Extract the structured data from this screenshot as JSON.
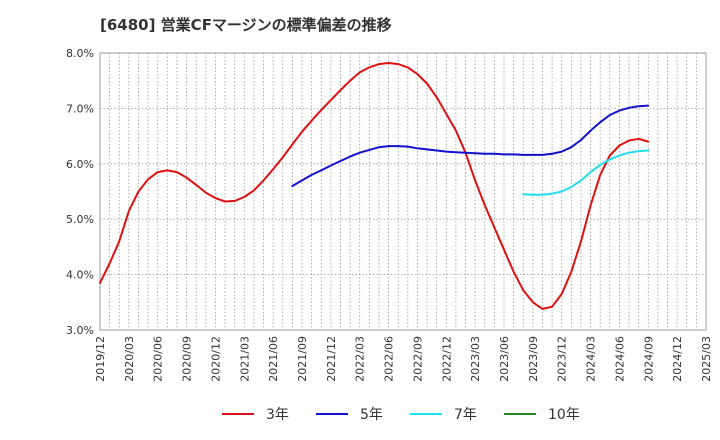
{
  "chart_data": {
    "type": "line",
    "title": "[6480]  営業CFマージンの標準偏差の推移",
    "xlabel": "",
    "ylabel": "",
    "ylim": [
      3.0,
      8.0
    ],
    "y_ticks": [
      "3.0%",
      "4.0%",
      "5.0%",
      "6.0%",
      "7.0%",
      "8.0%"
    ],
    "y_tick_values": [
      3,
      4,
      5,
      6,
      7,
      8
    ],
    "x_ticks": [
      "2019/12",
      "2020/03",
      "2020/06",
      "2020/09",
      "2020/12",
      "2021/03",
      "2021/06",
      "2021/09",
      "2021/12",
      "2022/03",
      "2022/06",
      "2022/09",
      "2022/12",
      "2023/03",
      "2023/06",
      "2023/09",
      "2023/12",
      "2024/03",
      "2024/06",
      "2024/09",
      "2024/12",
      "2025/03"
    ],
    "grid": true,
    "legend_position": "bottom",
    "series": [
      {
        "name": "3年",
        "color": "#dd1111",
        "points": [
          [
            "2019/12",
            3.85
          ],
          [
            "2020/01",
            4.2
          ],
          [
            "2020/02",
            4.6
          ],
          [
            "2020/03",
            5.15
          ],
          [
            "2020/04",
            5.5
          ],
          [
            "2020/05",
            5.72
          ],
          [
            "2020/06",
            5.85
          ],
          [
            "2020/07",
            5.88
          ],
          [
            "2020/08",
            5.85
          ],
          [
            "2020/09",
            5.75
          ],
          [
            "2020/10",
            5.62
          ],
          [
            "2020/11",
            5.48
          ],
          [
            "2020/12",
            5.38
          ],
          [
            "2021/01",
            5.32
          ],
          [
            "2021/02",
            5.33
          ],
          [
            "2021/03",
            5.4
          ],
          [
            "2021/04",
            5.52
          ],
          [
            "2021/05",
            5.7
          ],
          [
            "2021/06",
            5.9
          ],
          [
            "2021/07",
            6.12
          ],
          [
            "2021/08",
            6.35
          ],
          [
            "2021/09",
            6.58
          ],
          [
            "2021/10",
            6.78
          ],
          [
            "2021/11",
            6.97
          ],
          [
            "2021/12",
            7.15
          ],
          [
            "2022/01",
            7.33
          ],
          [
            "2022/02",
            7.5
          ],
          [
            "2022/03",
            7.65
          ],
          [
            "2022/04",
            7.74
          ],
          [
            "2022/05",
            7.8
          ],
          [
            "2022/06",
            7.82
          ],
          [
            "2022/07",
            7.8
          ],
          [
            "2022/08",
            7.74
          ],
          [
            "2022/09",
            7.62
          ],
          [
            "2022/10",
            7.45
          ],
          [
            "2022/11",
            7.2
          ],
          [
            "2022/12",
            6.9
          ],
          [
            "2023/01",
            6.6
          ],
          [
            "2023/02",
            6.2
          ],
          [
            "2023/03",
            5.7
          ],
          [
            "2023/04",
            5.25
          ],
          [
            "2023/05",
            4.85
          ],
          [
            "2023/06",
            4.45
          ],
          [
            "2023/07",
            4.05
          ],
          [
            "2023/08",
            3.72
          ],
          [
            "2023/09",
            3.5
          ],
          [
            "2023/10",
            3.38
          ],
          [
            "2023/11",
            3.42
          ],
          [
            "2023/12",
            3.65
          ],
          [
            "2024/01",
            4.05
          ],
          [
            "2024/02",
            4.6
          ],
          [
            "2024/03",
            5.25
          ],
          [
            "2024/04",
            5.8
          ],
          [
            "2024/05",
            6.15
          ],
          [
            "2024/06",
            6.33
          ],
          [
            "2024/07",
            6.42
          ],
          [
            "2024/08",
            6.45
          ],
          [
            "2024/09",
            6.4
          ]
        ]
      },
      {
        "name": "5年",
        "color": "#1111cc",
        "points": [
          [
            "2021/08",
            5.6
          ],
          [
            "2021/09",
            5.7
          ],
          [
            "2021/10",
            5.8
          ],
          [
            "2021/11",
            5.88
          ],
          [
            "2021/12",
            5.97
          ],
          [
            "2022/01",
            6.05
          ],
          [
            "2022/02",
            6.13
          ],
          [
            "2022/03",
            6.2
          ],
          [
            "2022/04",
            6.25
          ],
          [
            "2022/05",
            6.3
          ],
          [
            "2022/06",
            6.32
          ],
          [
            "2022/07",
            6.32
          ],
          [
            "2022/08",
            6.31
          ],
          [
            "2022/09",
            6.28
          ],
          [
            "2022/10",
            6.26
          ],
          [
            "2022/11",
            6.24
          ],
          [
            "2022/12",
            6.22
          ],
          [
            "2023/01",
            6.21
          ],
          [
            "2023/02",
            6.2
          ],
          [
            "2023/03",
            6.19
          ],
          [
            "2023/04",
            6.18
          ],
          [
            "2023/05",
            6.18
          ],
          [
            "2023/06",
            6.17
          ],
          [
            "2023/07",
            6.17
          ],
          [
            "2023/08",
            6.16
          ],
          [
            "2023/09",
            6.16
          ],
          [
            "2023/10",
            6.16
          ],
          [
            "2023/11",
            6.18
          ],
          [
            "2023/12",
            6.22
          ],
          [
            "2024/01",
            6.3
          ],
          [
            "2024/02",
            6.43
          ],
          [
            "2024/03",
            6.6
          ],
          [
            "2024/04",
            6.75
          ],
          [
            "2024/05",
            6.88
          ],
          [
            "2024/06",
            6.96
          ],
          [
            "2024/07",
            7.01
          ],
          [
            "2024/08",
            7.04
          ],
          [
            "2024/09",
            7.05
          ]
        ]
      },
      {
        "name": "7年",
        "color": "#22ddee",
        "points": [
          [
            "2023/08",
            5.45
          ],
          [
            "2023/09",
            5.44
          ],
          [
            "2023/10",
            5.44
          ],
          [
            "2023/11",
            5.46
          ],
          [
            "2023/12",
            5.5
          ],
          [
            "2024/01",
            5.58
          ],
          [
            "2024/02",
            5.7
          ],
          [
            "2024/03",
            5.85
          ],
          [
            "2024/04",
            5.98
          ],
          [
            "2024/05",
            6.08
          ],
          [
            "2024/06",
            6.15
          ],
          [
            "2024/07",
            6.2
          ],
          [
            "2024/08",
            6.23
          ],
          [
            "2024/09",
            6.24
          ]
        ]
      },
      {
        "name": "10年",
        "color": "#228822",
        "points": []
      }
    ]
  }
}
